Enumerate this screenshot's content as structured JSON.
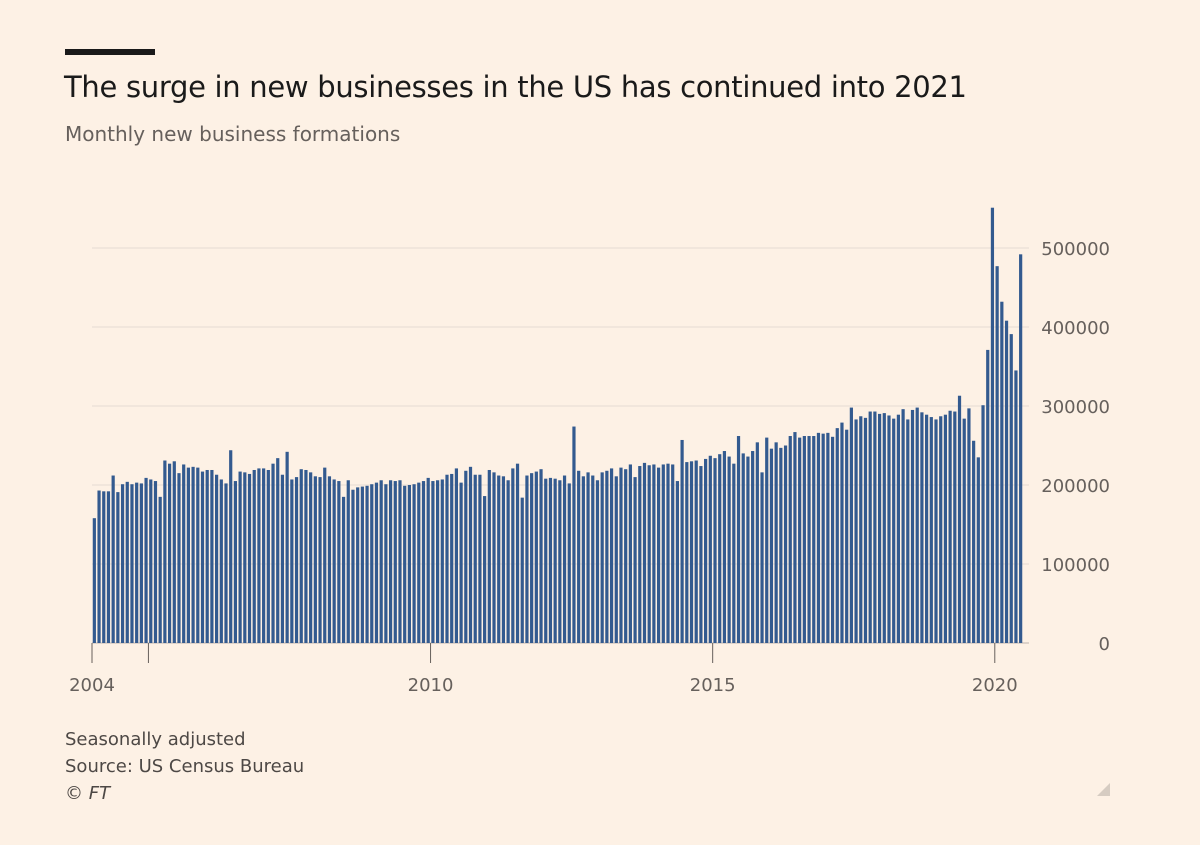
{
  "header": {
    "title": "The surge in new businesses in the US has continued into 2021",
    "subtitle": "Monthly new business formations"
  },
  "footer": {
    "note": "Seasonally adjusted",
    "source": "Source: US Census Bureau",
    "copyright": "© FT"
  },
  "colors": {
    "background": "#fdf1e5",
    "bar": "#335a8f",
    "grid": "#e5dbd3",
    "text": "#66605c"
  },
  "chart_data": {
    "type": "bar",
    "title": "The surge in new businesses in the US has continued into 2021",
    "subtitle": "Monthly new business formations",
    "xlabel": "",
    "ylabel": "",
    "x_start": "2004-01",
    "x_ticks": [
      "2004",
      "2010",
      "2015",
      "2020"
    ],
    "y_ticks": [
      0,
      100000,
      200000,
      300000,
      400000,
      500000
    ],
    "ylim": [
      0,
      560000
    ],
    "y_axis_side": "right",
    "grid": true,
    "series": [
      {
        "values": [
          158000,
          193000,
          192000,
          192000,
          212000,
          191000,
          201000,
          204000,
          201000,
          203000,
          202000,
          209000,
          207000,
          205000,
          185000,
          231000,
          227000,
          230000,
          215000,
          226000,
          222000,
          223000,
          222000,
          217000,
          219000,
          219000,
          213000,
          207000,
          202000,
          244000,
          205000,
          217000,
          216000,
          214000,
          219000,
          221000,
          221000,
          219000,
          227000,
          234000,
          213000,
          242000,
          207000,
          210000,
          220000,
          219000,
          216000,
          211000,
          210000,
          222000,
          211000,
          207000,
          205000,
          185000,
          206000,
          194000,
          197000,
          198000,
          199000,
          201000,
          203000,
          206000,
          201000,
          206000,
          205000,
          206000,
          199000,
          200000,
          201000,
          203000,
          205000,
          209000,
          205000,
          206000,
          207000,
          213000,
          214000,
          221000,
          203000,
          218000,
          223000,
          213000,
          213000,
          186000,
          219000,
          216000,
          212000,
          211000,
          206000,
          221000,
          227000,
          184000,
          212000,
          215000,
          217000,
          220000,
          208000,
          209000,
          208000,
          206000,
          212000,
          202000,
          274000,
          218000,
          211000,
          216000,
          212000,
          206000,
          216000,
          218000,
          221000,
          211000,
          222000,
          220000,
          226000,
          210000,
          224000,
          228000,
          225000,
          226000,
          222000,
          226000,
          227000,
          226000,
          205000,
          257000,
          229000,
          230000,
          231000,
          224000,
          233000,
          237000,
          234000,
          239000,
          243000,
          236000,
          227000,
          262000,
          240000,
          236000,
          243000,
          254000,
          216000,
          260000,
          246000,
          254000,
          247000,
          250000,
          262000,
          267000,
          260000,
          262000,
          262000,
          262000,
          266000,
          265000,
          266000,
          261000,
          272000,
          279000,
          270000,
          298000,
          283000,
          287000,
          285000,
          293000,
          293000,
          290000,
          291000,
          288000,
          284000,
          289000,
          296000,
          283000,
          295000,
          298000,
          292000,
          289000,
          286000,
          283000,
          287000,
          289000,
          294000,
          293000,
          313000,
          284000,
          297000,
          256000,
          235000,
          301000,
          371000,
          551000,
          477000,
          432000,
          408000,
          391000,
          345000,
          492000
        ]
      }
    ]
  }
}
